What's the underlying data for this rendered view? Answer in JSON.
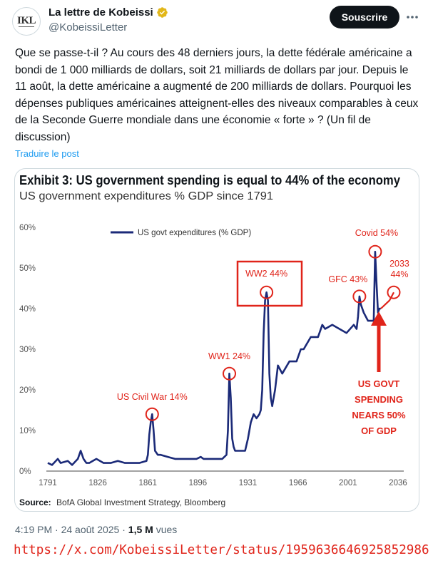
{
  "author": {
    "avatar_text": "IKL",
    "display_name": "La lettre de Kobeissi",
    "handle": "@KobeissiLetter",
    "verified_icon": "verified-badge-icon"
  },
  "actions": {
    "subscribe_label": "Souscrire",
    "more_icon": "more-icon"
  },
  "tweet": {
    "text": "Que se passe-t-il ? Au cours des 48 derniers jours, la dette fédérale américaine a bondi de 1 000 milliards de dollars, soit 21 milliards de dollars par jour. Depuis le 11 août, la dette américaine a augmenté de 200 milliards de dollars. Pourquoi les dépenses publiques américaines atteignent-elles des niveaux comparables à ceux de la Seconde Guerre mondiale dans une économie « forte » ? (Un fil de discussion)",
    "translate_label": "Traduire le post"
  },
  "meta": {
    "time": "4:19 PM",
    "separator": " · ",
    "date": "24 août 2025",
    "views_count": "1,5 M",
    "views_label": " vues"
  },
  "watermark_url": "https://x.com/KobeissiLetter/status/1959636646925852986",
  "colors": {
    "line": "#1b2a78",
    "highlight": "#e0241a",
    "link": "#1d9bf0",
    "text_secondary": "#536471"
  },
  "chart_data": {
    "type": "line",
    "title": "Exhibit 3: US government spending is equal to 44% of the economy",
    "subtitle": "US government expenditures % GDP since 1791",
    "legend": "US govt expenditures (% GDP)",
    "legend_position": "top-left",
    "source_label": "Source:",
    "source_text": "BofA Global Investment Strategy, Bloomberg",
    "xlabel": "",
    "ylabel": "",
    "xlim": [
      1791,
      2040
    ],
    "ylim": [
      0,
      60
    ],
    "x_ticks": [
      "1791",
      "1826",
      "1861",
      "1896",
      "1931",
      "1966",
      "2001",
      "2036"
    ],
    "y_ticks": [
      "0%",
      "10%",
      "20%",
      "30%",
      "40%",
      "50%",
      "60%"
    ],
    "series": [
      {
        "name": "US govt expenditures (% GDP)",
        "x": [
          1791,
          1794,
          1798,
          1800,
          1805,
          1808,
          1812,
          1814,
          1816,
          1818,
          1820,
          1825,
          1830,
          1835,
          1840,
          1845,
          1850,
          1855,
          1860,
          1861,
          1862,
          1863,
          1864,
          1865,
          1866,
          1868,
          1870,
          1875,
          1880,
          1885,
          1890,
          1895,
          1898,
          1900,
          1905,
          1910,
          1913,
          1916,
          1917,
          1918,
          1919,
          1920,
          1921,
          1922,
          1925,
          1929,
          1931,
          1933,
          1935,
          1937,
          1939,
          1940,
          1941,
          1942,
          1943,
          1944,
          1945,
          1946,
          1947,
          1948,
          1950,
          1952,
          1955,
          1960,
          1965,
          1968,
          1970,
          1975,
          1980,
          1983,
          1985,
          1990,
          1995,
          2000,
          2005,
          2007,
          2008,
          2009,
          2010,
          2012,
          2015,
          2019,
          2020,
          2021,
          2022,
          2023,
          2024
        ],
        "y": [
          2,
          1.5,
          3,
          2,
          2.5,
          1.5,
          3,
          5,
          3,
          2,
          2,
          3,
          2,
          2,
          2.5,
          2,
          2,
          2,
          2.5,
          4,
          9,
          12,
          14,
          10,
          5,
          4,
          4,
          3.5,
          3,
          3,
          3,
          3,
          3.5,
          3,
          3,
          3,
          3,
          4,
          10,
          24,
          18,
          8,
          6,
          5,
          5,
          5,
          8,
          12,
          14,
          13,
          14,
          15,
          20,
          34,
          42,
          44,
          42,
          24,
          18,
          16,
          20,
          26,
          24,
          27,
          27,
          30,
          30,
          33,
          33,
          36,
          35,
          36,
          35,
          34,
          36,
          35,
          38,
          43,
          41,
          39,
          37,
          37,
          54,
          46,
          39,
          40,
          40
        ]
      },
      {
        "name": "2033 projection",
        "x": [
          2024,
          2027,
          2030,
          2033
        ],
        "y": [
          40,
          41,
          42,
          44
        ]
      }
    ],
    "annotations": [
      {
        "label": "US Civil War 14%",
        "x": 1864,
        "y": 14
      },
      {
        "label": "WW1 24%",
        "x": 1918,
        "y": 24
      },
      {
        "label": "WW2 44%",
        "x": 1944,
        "y": 44
      },
      {
        "label": "GFC 43%",
        "x": 2009,
        "y": 43
      },
      {
        "label": "Covid 54%",
        "x": 2020,
        "y": 54
      },
      {
        "label_line1": "2033",
        "label_line2": "44%",
        "x": 2033,
        "y": 44
      }
    ],
    "callout": [
      "US GOVT",
      "SPENDING",
      "NEARS 50%",
      "OF GDP"
    ]
  }
}
